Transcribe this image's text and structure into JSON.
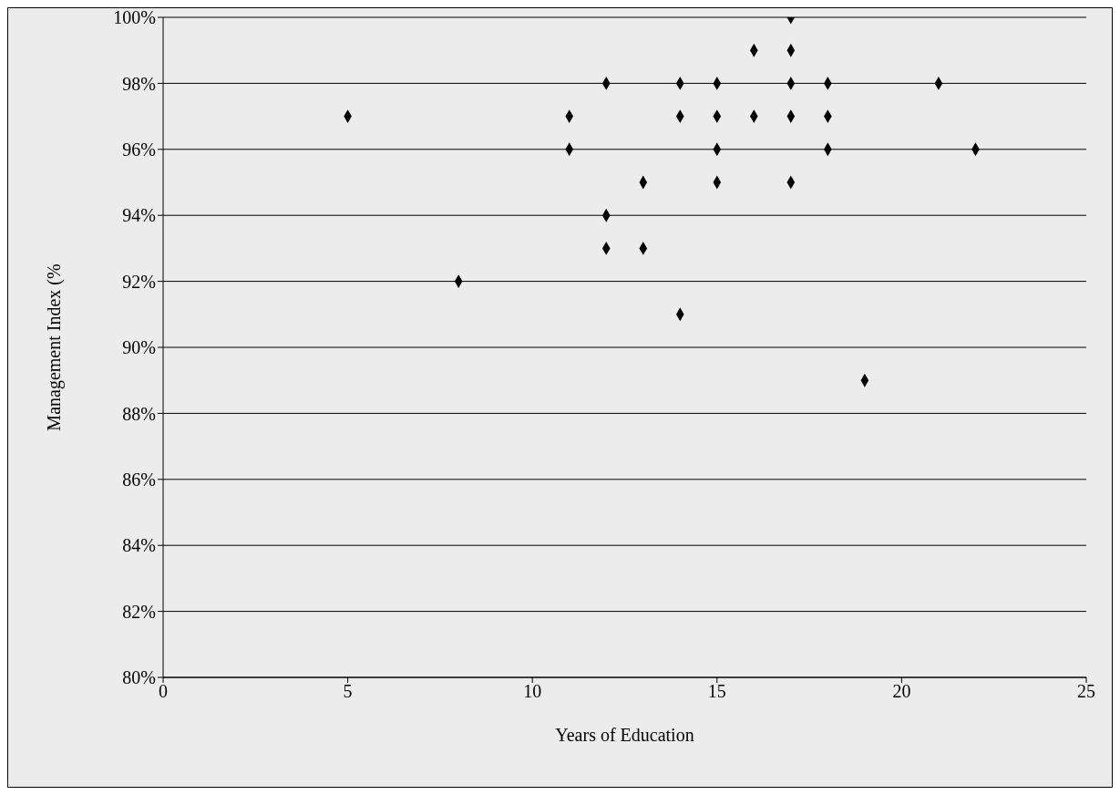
{
  "chart_data": {
    "type": "scatter",
    "xlabel": "Years of Education",
    "ylabel": "Management Index (%",
    "series": [
      {
        "color": "#000000",
        "x": [
          5,
          8,
          11,
          11,
          12,
          12,
          12,
          13,
          13,
          14,
          14,
          14,
          15,
          15,
          15,
          15,
          16,
          16,
          17,
          17,
          17,
          17,
          17,
          18,
          18,
          18,
          19,
          21,
          22
        ],
        "values": [
          97,
          92,
          97,
          96,
          98,
          94,
          93,
          95,
          93,
          98,
          97,
          91,
          98,
          97,
          96,
          95,
          99,
          97,
          100,
          99,
          98,
          97,
          95,
          98,
          97,
          96,
          89,
          98,
          96
        ]
      }
    ],
    "xlim": [
      0,
      25
    ],
    "xticks": [
      0,
      5,
      10,
      15,
      20,
      25
    ],
    "ylim": [
      80,
      100
    ],
    "yticks": [
      {
        "value": 80,
        "label": "80%"
      },
      {
        "value": 82,
        "label": "82%"
      },
      {
        "value": 84,
        "label": "84%"
      },
      {
        "value": 86,
        "label": "86%"
      },
      {
        "value": 88,
        "label": "88%"
      },
      {
        "value": 90,
        "label": "90%"
      },
      {
        "value": 92,
        "label": "92%"
      },
      {
        "value": 94,
        "label": "94%"
      },
      {
        "value": 96,
        "label": "96%"
      },
      {
        "value": 98,
        "label": "98%"
      },
      {
        "value": 100,
        "label": "100%"
      }
    ],
    "grid": "y",
    "marker": "diamond"
  }
}
